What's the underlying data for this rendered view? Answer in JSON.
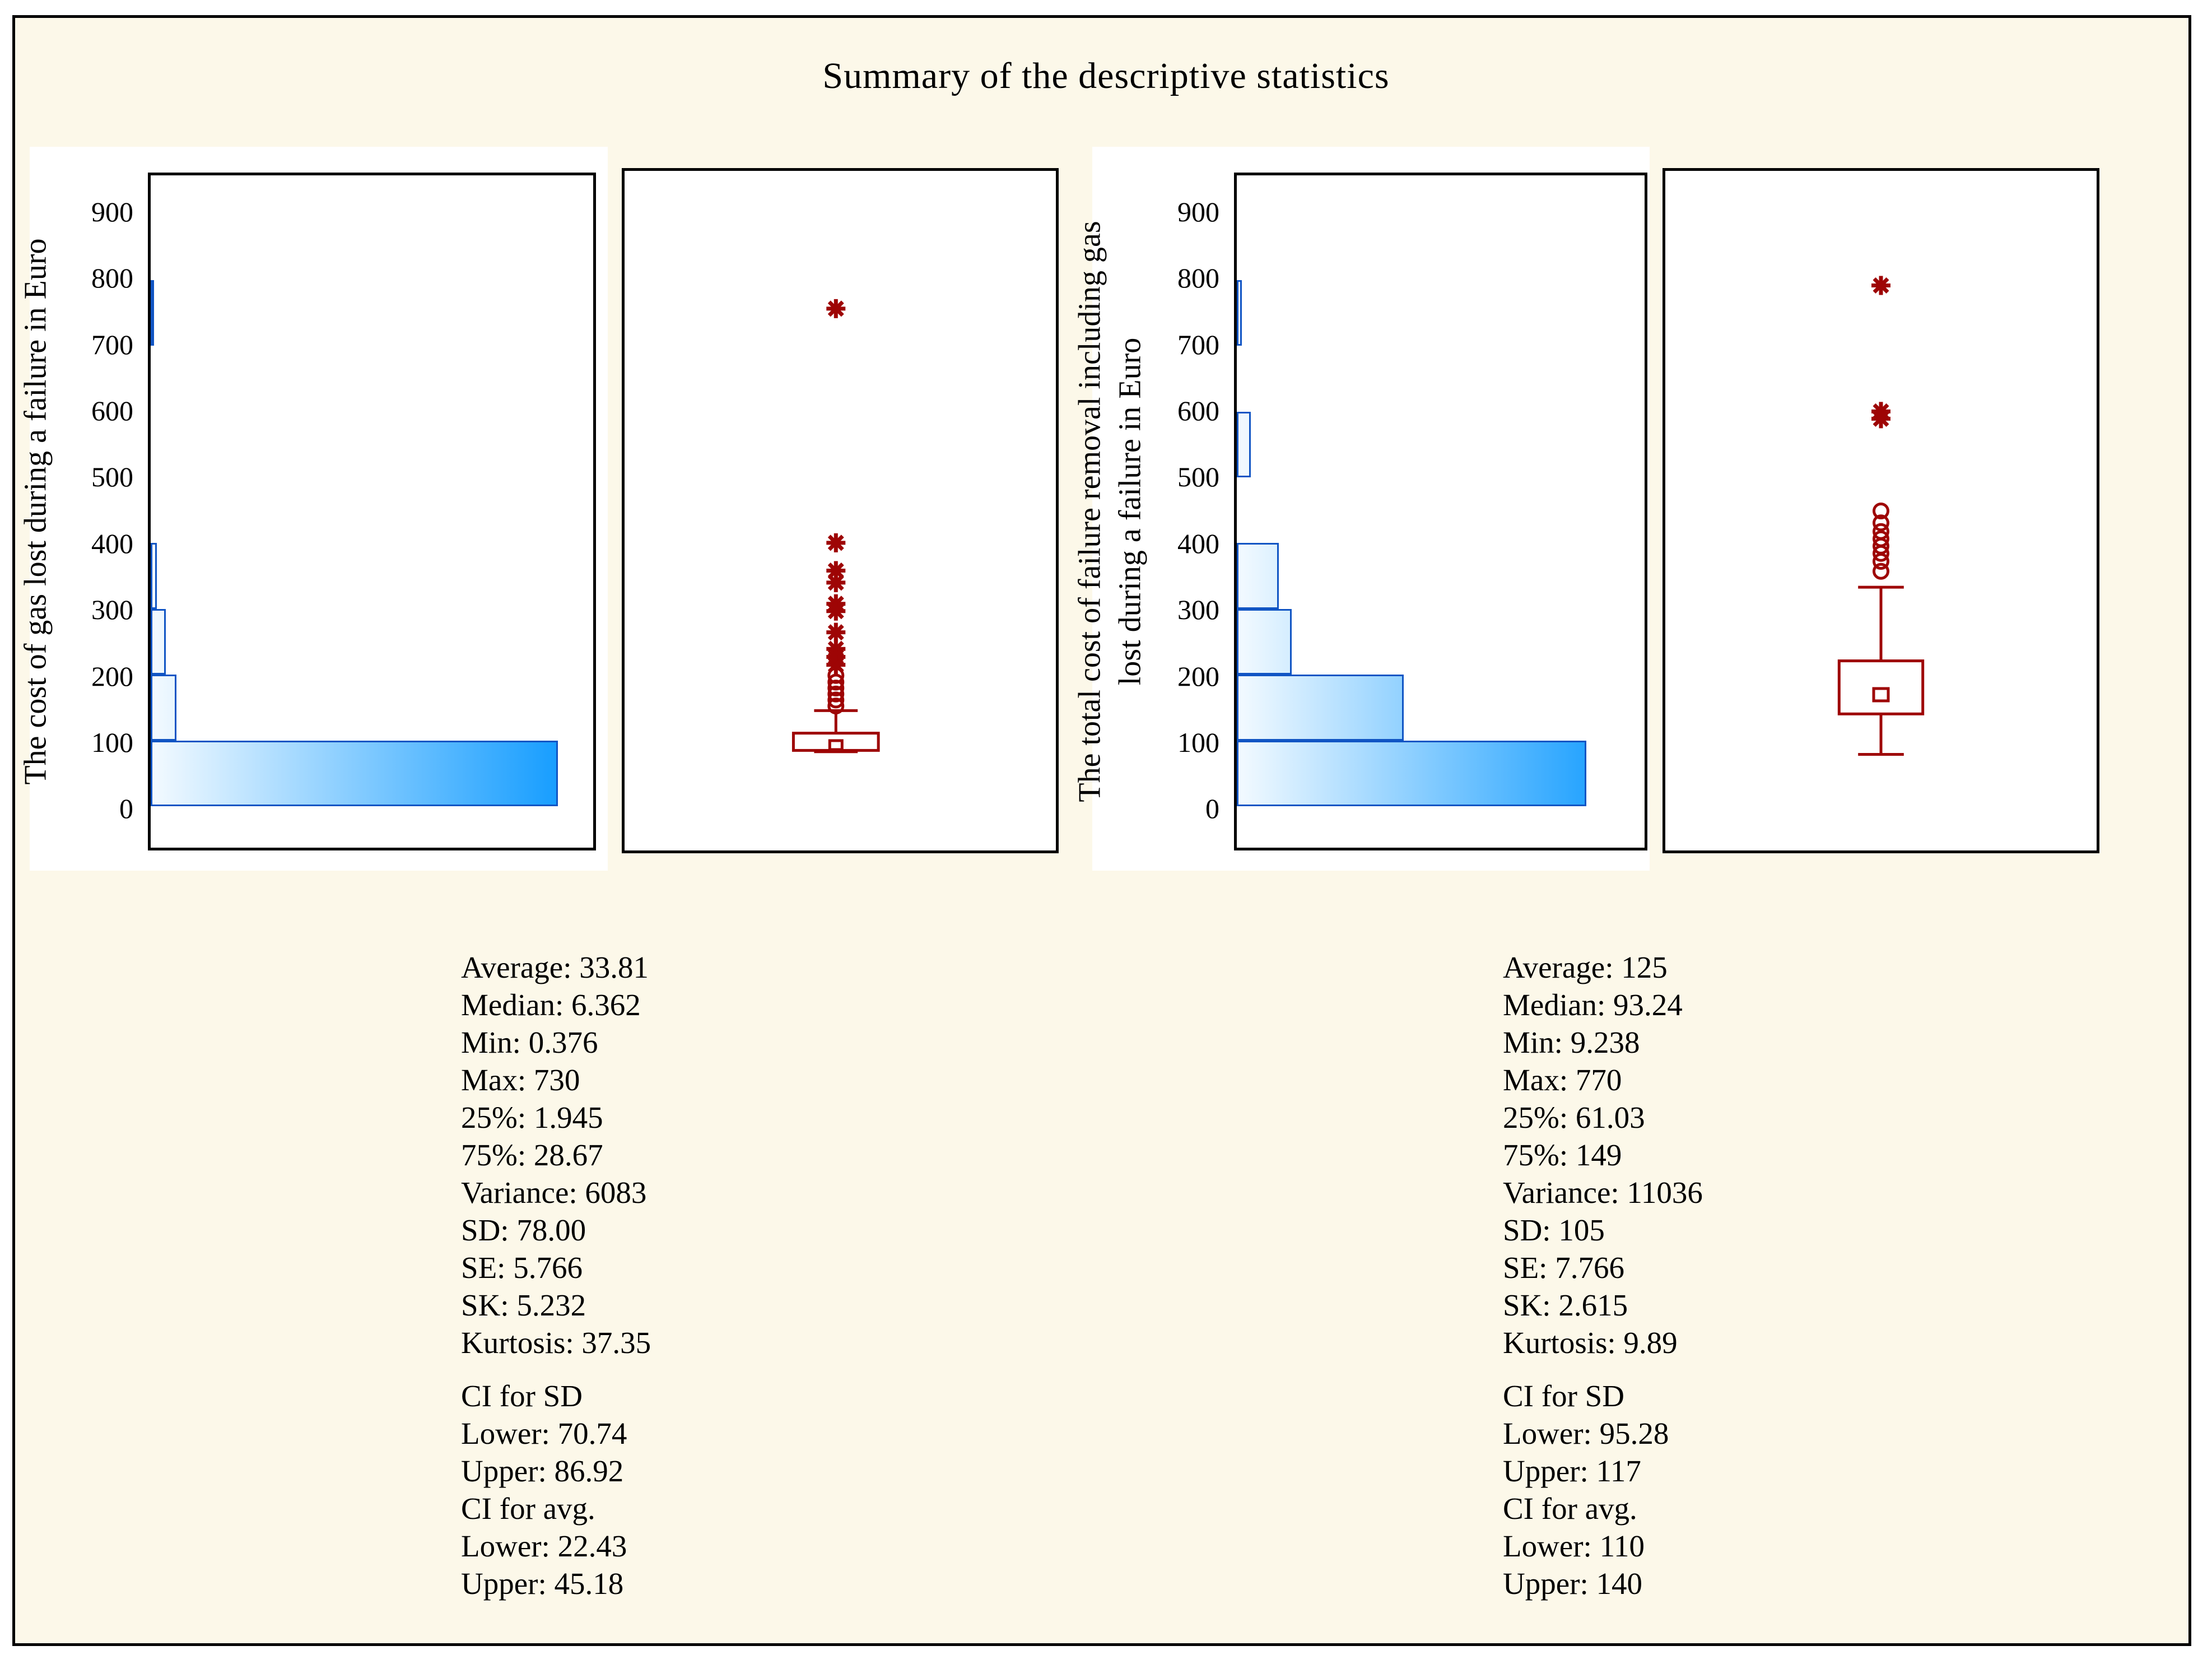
{
  "title": "Summary of the descriptive statistics",
  "colors": {
    "background": "#FCF8E9",
    "panel": "#FFFFFF",
    "frame": "#000000",
    "bar_outline": "#1155C4",
    "bar_gradient_start": "#F3FAFF",
    "bar_gradient_end": "#0094FF",
    "box_color": "#9E0505"
  },
  "chart_data": [
    {
      "id": "hist-left",
      "type": "bar",
      "orientation": "horizontal",
      "ylabel_lines": [
        "The cost of gas lost during a failure in Euro"
      ],
      "xlabel": "",
      "ylim": [
        -63,
        959
      ],
      "yticks": [
        0,
        100,
        200,
        300,
        400,
        500,
        600,
        700,
        800,
        900
      ],
      "grid": false,
      "bins": [
        {
          "range": [
            0,
            100
          ],
          "width_frac": 0.92
        },
        {
          "range": [
            100,
            200
          ],
          "width_frac": 0.058
        },
        {
          "range": [
            200,
            300
          ],
          "width_frac": 0.034
        },
        {
          "range": [
            300,
            400
          ],
          "width_frac": 0.014
        },
        {
          "range": [
            700,
            800
          ],
          "width_frac": 0.007
        }
      ]
    },
    {
      "id": "box-left",
      "type": "boxplot",
      "ylim": [
        -63,
        959
      ],
      "q1": 87,
      "q3": 113,
      "mean": 95,
      "upper_whisker": 147,
      "lower_cap": 85,
      "center_frac": 0.49,
      "box_width_frac": 0.197,
      "cap_width_frac": 0.101,
      "mean_marker": {
        "w": 22,
        "h": 16
      },
      "outliers_star": [
        753,
        400,
        358,
        340,
        308,
        297,
        265,
        240,
        228,
        216
      ],
      "outliers_circle": [
        200,
        190,
        181,
        172,
        163,
        154
      ]
    },
    {
      "id": "hist-right",
      "type": "bar",
      "orientation": "horizontal",
      "ylabel_lines": [
        "The total cost of failure removal including gas",
        "lost during a failure in Euro"
      ],
      "xlabel": "",
      "ylim": [
        -63,
        959
      ],
      "yticks": [
        0,
        100,
        200,
        300,
        400,
        500,
        600,
        700,
        800,
        900
      ],
      "grid": false,
      "bins": [
        {
          "range": [
            0,
            100
          ],
          "width_frac": 0.857
        },
        {
          "range": [
            100,
            200
          ],
          "width_frac": 0.41
        },
        {
          "range": [
            200,
            300
          ],
          "width_frac": 0.134
        },
        {
          "range": [
            300,
            400
          ],
          "width_frac": 0.103
        },
        {
          "range": [
            500,
            600
          ],
          "width_frac": 0.035
        },
        {
          "range": [
            700,
            800
          ],
          "width_frac": 0.012
        }
      ]
    },
    {
      "id": "box-right",
      "type": "boxplot",
      "ylim": [
        -63,
        959
      ],
      "q1": 142,
      "q3": 222,
      "mean": 171,
      "upper_whisker": 333,
      "lower_whisker": 81,
      "center_frac": 0.5,
      "box_width_frac": 0.194,
      "cap_width_frac": 0.106,
      "mean_marker": {
        "w": 26,
        "h": 22
      },
      "outliers_star": [
        788,
        598,
        587
      ],
      "outliers_circle": [
        448,
        430,
        417,
        406,
        395,
        384,
        372,
        357
      ]
    }
  ],
  "stats_left": {
    "lines": [
      "Average: 33.81",
      "Median: 6.362",
      "Min: 0.376",
      "Max: 730",
      "25%: 1.945",
      "75%: 28.67",
      "Variance: 6083",
      "SD: 78.00",
      "SE: 5.766",
      "SK: 5.232",
      "Kurtosis: 37.35"
    ],
    "ci_lines": [
      "CI for SD",
      "Lower: 70.74",
      "Upper: 86.92",
      "CI for avg.",
      "Lower: 22.43",
      "Upper: 45.18"
    ]
  },
  "stats_right": {
    "lines": [
      "Average: 125",
      "Median: 93.24",
      "Min: 9.238",
      "Max: 770",
      "25%: 61.03",
      "75%: 149",
      "Variance: 11036",
      "SD: 105",
      "SE: 7.766",
      "SK: 2.615",
      "Kurtosis: 9.89"
    ],
    "ci_lines": [
      "CI for SD",
      "Lower: 95.28",
      "Upper: 117",
      "CI for avg.",
      "Lower: 110",
      "Upper: 140"
    ]
  }
}
